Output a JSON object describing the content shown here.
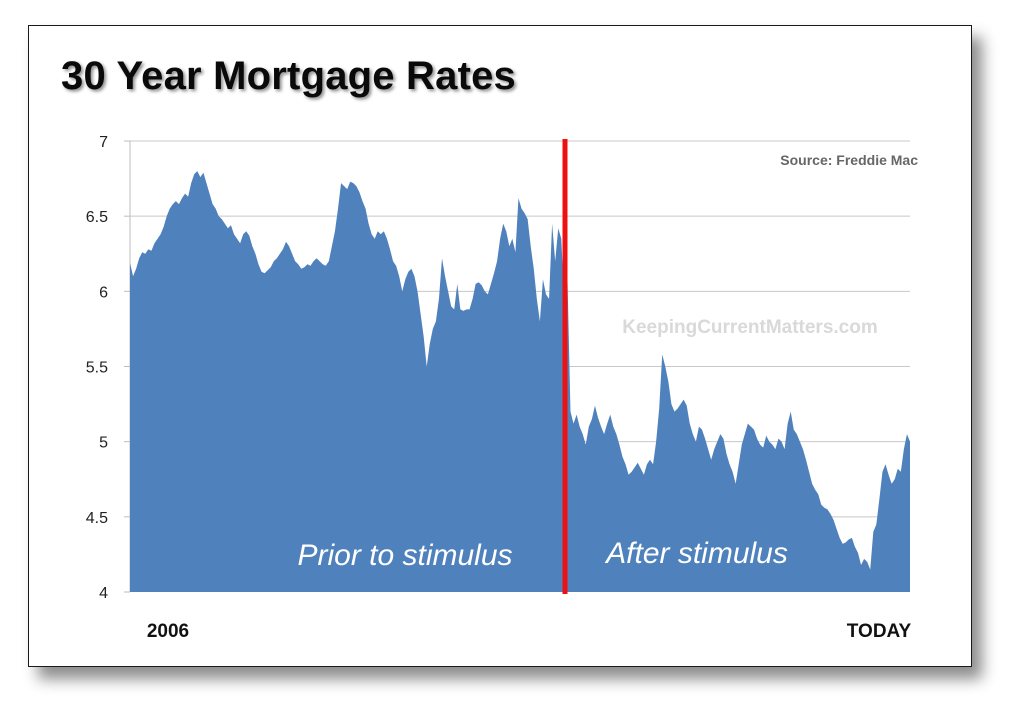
{
  "chart_data": {
    "type": "area",
    "title": "30 Year Mortgage Rates",
    "source": "Source: Freddie Mac",
    "watermark": "KeepingCurrentMatters.com",
    "x_start_label": "2006",
    "x_end_label": "TODAY",
    "y_ticks": [
      "7",
      "6.5",
      "6",
      "5.5",
      "5",
      "4.5",
      "4"
    ],
    "ylim": [
      4,
      7
    ],
    "grid": true,
    "annotations": [
      "Prior to stimulus",
      "After stimulus"
    ],
    "divider_label": "stimulus",
    "series": [
      {
        "values": [
          6.19,
          6.1,
          6.15,
          6.22,
          6.26,
          6.25,
          6.28,
          6.27,
          6.32,
          6.35,
          6.38,
          6.43,
          6.5,
          6.55,
          6.58,
          6.6,
          6.58,
          6.62,
          6.65,
          6.63,
          6.72,
          6.78,
          6.8,
          6.76,
          6.79,
          6.72,
          6.65,
          6.58,
          6.55,
          6.5,
          6.48,
          6.45,
          6.42,
          6.44,
          6.38,
          6.35,
          6.32,
          6.38,
          6.4,
          6.37,
          6.3,
          6.25,
          6.18,
          6.13,
          6.12,
          6.14,
          6.16,
          6.2,
          6.22,
          6.25,
          6.28,
          6.33,
          6.3,
          6.25,
          6.2,
          6.18,
          6.15,
          6.16,
          6.18,
          6.17,
          6.2,
          6.22,
          6.2,
          6.18,
          6.17,
          6.2,
          6.3,
          6.4,
          6.55,
          6.72,
          6.7,
          6.68,
          6.73,
          6.72,
          6.7,
          6.66,
          6.6,
          6.55,
          6.45,
          6.38,
          6.35,
          6.4,
          6.38,
          6.4,
          6.35,
          6.28,
          6.2,
          6.17,
          6.1,
          6.0,
          6.08,
          6.13,
          6.15,
          6.1,
          6.0,
          5.85,
          5.7,
          5.5,
          5.65,
          5.75,
          5.8,
          5.95,
          6.22,
          6.1,
          6.0,
          5.9,
          5.88,
          6.05,
          5.88,
          5.87,
          5.88,
          5.88,
          5.95,
          6.05,
          6.06,
          6.04,
          6.0,
          5.98,
          6.05,
          6.12,
          6.2,
          6.35,
          6.45,
          6.4,
          6.3,
          6.35,
          6.26,
          6.62,
          6.55,
          6.52,
          6.48,
          6.3,
          6.15,
          5.95,
          5.8,
          6.08,
          5.98,
          5.95,
          6.45,
          6.2,
          6.42,
          6.35,
          5.92,
          6.1,
          5.2,
          5.12,
          5.18,
          5.1,
          5.05,
          4.98,
          5.1,
          5.15,
          5.24,
          5.16,
          5.1,
          5.05,
          5.12,
          5.18,
          5.1,
          5.05,
          4.98,
          4.9,
          4.85,
          4.78,
          4.8,
          4.83,
          4.86,
          4.82,
          4.78,
          4.85,
          4.88,
          4.85,
          5.0,
          5.22,
          5.58,
          5.5,
          5.4,
          5.25,
          5.2,
          5.22,
          5.25,
          5.28,
          5.24,
          5.12,
          5.05,
          5.0,
          5.1,
          5.08,
          5.02,
          4.95,
          4.88,
          4.95,
          5.0,
          5.05,
          5.02,
          4.92,
          4.85,
          4.8,
          4.72,
          4.85,
          4.98,
          5.05,
          5.12,
          5.1,
          5.08,
          5.02,
          4.98,
          4.96,
          5.04,
          5.0,
          4.98,
          4.95,
          5.02,
          5.0,
          4.95,
          5.12,
          5.2,
          5.08,
          5.05,
          5.0,
          4.95,
          4.88,
          4.8,
          4.72,
          4.68,
          4.65,
          4.58,
          4.56,
          4.55,
          4.52,
          4.48,
          4.42,
          4.36,
          4.32,
          4.33,
          4.35,
          4.36,
          4.3,
          4.26,
          4.18,
          4.22,
          4.2,
          4.15,
          4.4,
          4.45,
          4.62,
          4.8,
          4.85,
          4.78,
          4.72,
          4.75,
          4.82,
          4.8,
          4.95,
          5.05,
          5.0
        ]
      }
    ]
  }
}
